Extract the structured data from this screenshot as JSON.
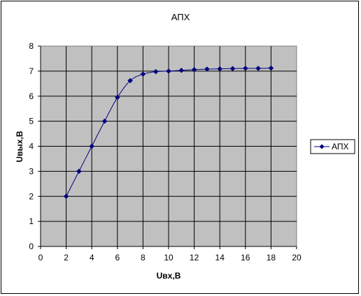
{
  "chart_data": {
    "type": "line",
    "title": "АПХ",
    "xlabel": "Uвх,В",
    "ylabel": "Uвых,В",
    "xlim": [
      0,
      20
    ],
    "ylim": [
      0,
      8
    ],
    "xticks": [
      0,
      2,
      4,
      6,
      8,
      10,
      12,
      14,
      16,
      18,
      20
    ],
    "yticks": [
      0,
      1,
      2,
      3,
      4,
      5,
      6,
      7,
      8
    ],
    "grid": true,
    "legend_position": "right",
    "plot_background": "#c0c0c0",
    "series": [
      {
        "name": "АПХ",
        "color": "#000080",
        "marker": "diamond",
        "x": [
          2,
          3,
          4,
          5,
          6,
          7,
          8,
          9,
          10,
          11,
          12,
          13,
          14,
          15,
          16,
          17,
          18
        ],
        "y": [
          2,
          3,
          4,
          5,
          5.95,
          6.62,
          6.88,
          6.98,
          7.0,
          7.03,
          7.06,
          7.08,
          7.09,
          7.1,
          7.11,
          7.11,
          7.12
        ]
      }
    ]
  }
}
